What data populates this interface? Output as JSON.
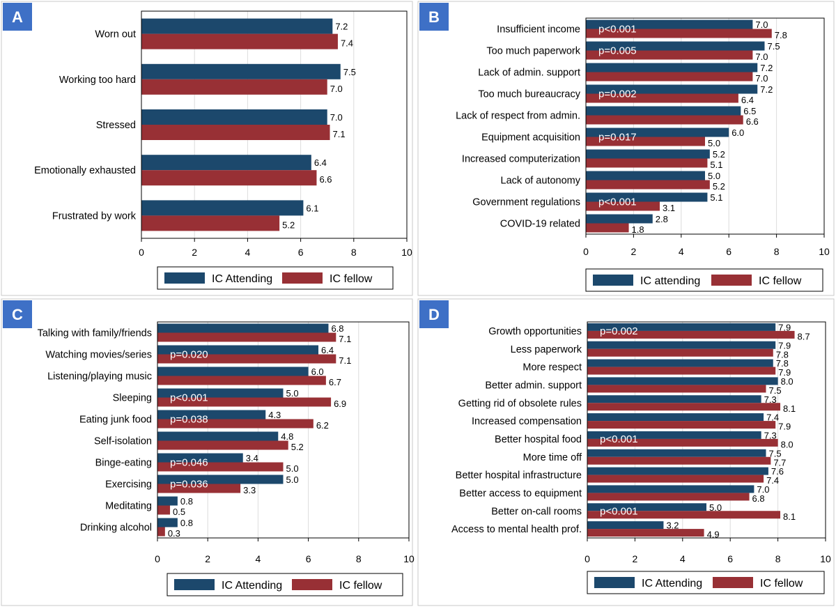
{
  "colors": {
    "attending": "#1c486c",
    "fellow": "#983035",
    "badge": "#3e70c6",
    "frame": "#c9c9c9"
  },
  "chart_data": [
    {
      "type": "bar",
      "panel_label": "A",
      "orientation": "horizontal",
      "categories": [
        "Worn out",
        "Working too hard",
        "Stressed",
        "Emotionally exhausted",
        "Frustrated by work"
      ],
      "series": [
        {
          "name": "IC Attending",
          "values": [
            7.2,
            7.5,
            7.0,
            6.4,
            6.1
          ]
        },
        {
          "name": "IC fellow",
          "values": [
            7.4,
            7.0,
            7.1,
            6.6,
            5.2
          ]
        }
      ],
      "value_labels": {
        "attending": [
          "7.2",
          "7.5",
          "7.0",
          "6.4",
          "6.1"
        ],
        "fellow": [
          "7.4",
          "7.0",
          "7.1",
          "6.6",
          "5.2"
        ]
      },
      "p_values": [
        "",
        "",
        "",
        "",
        ""
      ],
      "xlim": [
        0,
        10
      ],
      "xticks": [
        "0",
        "2",
        "4",
        "6",
        "8",
        "10"
      ],
      "grid": true,
      "legend_position": "bottom"
    },
    {
      "type": "bar",
      "panel_label": "B",
      "orientation": "horizontal",
      "categories": [
        "Insufficient income",
        "Too much paperwork",
        "Lack of admin. support",
        "Too much bureaucracy",
        "Lack of respect from admin.",
        "Equipment acquisition",
        "Increased computerization",
        "Lack of autonomy",
        "Government regulations",
        "COVID-19 related"
      ],
      "series": [
        {
          "name": "IC attending",
          "values": [
            7.0,
            7.5,
            7.2,
            7.2,
            6.5,
            6.0,
            5.2,
            5.0,
            5.1,
            2.8
          ]
        },
        {
          "name": "IC fellow",
          "values": [
            7.8,
            7.0,
            7.0,
            6.4,
            6.6,
            5.0,
            5.1,
            5.2,
            3.1,
            1.8
          ]
        }
      ],
      "value_labels": {
        "attending": [
          "7.0",
          "7.5",
          "7.2",
          "7.2",
          "6.5",
          "6.0",
          "5.2",
          "5.0",
          "5.1",
          "2.8"
        ],
        "fellow": [
          "7.8",
          "7.0",
          "7.0",
          "6.4",
          "6.6",
          "5.0",
          "5.1",
          "5.2",
          "3.1",
          "1.8"
        ]
      },
      "p_values": [
        "p<0.001",
        "p=0.005",
        "",
        "p=0.002",
        "",
        "p=0.017",
        "",
        "",
        "p<0.001",
        ""
      ],
      "xlim": [
        0,
        10
      ],
      "xticks": [
        "0",
        "2",
        "4",
        "6",
        "8",
        "10"
      ],
      "grid": true,
      "legend_position": "bottom"
    },
    {
      "type": "bar",
      "panel_label": "C",
      "orientation": "horizontal",
      "categories": [
        "Talking with family/friends",
        "Watching movies/series",
        "Listening/playing music",
        "Sleeping",
        "Eating junk food",
        "Self-isolation",
        "Binge-eating",
        "Exercising",
        "Meditating",
        "Drinking alcohol"
      ],
      "series": [
        {
          "name": "IC Attending",
          "values": [
            6.8,
            6.4,
            6.0,
            5.0,
            4.3,
            4.8,
            3.4,
            5.0,
            0.8,
            0.8
          ]
        },
        {
          "name": "IC fellow",
          "values": [
            7.1,
            7.1,
            6.7,
            6.9,
            6.2,
            5.2,
            5.0,
            3.3,
            0.5,
            0.3
          ]
        }
      ],
      "value_labels": {
        "attending": [
          "6.8",
          "6.4",
          "6.0",
          "5.0",
          "4.3",
          "4.8",
          "3.4",
          "5.0",
          "0.8",
          "0.8"
        ],
        "fellow": [
          "7.1",
          "7.1",
          "6.7",
          "6.9",
          "6.2",
          "5.2",
          "5.0",
          "3.3",
          "0.5",
          "0.3"
        ]
      },
      "p_values": [
        "",
        "p=0.020",
        "",
        "p<0.001",
        "p=0.038",
        "",
        "p=0.046",
        "p=0.036",
        "",
        ""
      ],
      "xlim": [
        0,
        10
      ],
      "xticks": [
        "0",
        "2",
        "4",
        "6",
        "8",
        "10"
      ],
      "grid": true,
      "legend_position": "bottom"
    },
    {
      "type": "bar",
      "panel_label": "D",
      "orientation": "horizontal",
      "categories": [
        "Growth opportunities",
        "Less paperwork",
        "More respect",
        "Better admin. support",
        "Getting rid of obsolete rules",
        "Increased compensation",
        "Better hospital food",
        "More time off",
        "Better hospital infrastructure",
        "Better access to equipment",
        "Better on-call rooms",
        "Access to mental health prof."
      ],
      "series": [
        {
          "name": "IC Attending",
          "values": [
            7.9,
            7.9,
            7.8,
            8.0,
            7.3,
            7.4,
            7.3,
            7.5,
            7.6,
            7.0,
            5.0,
            3.2
          ]
        },
        {
          "name": "IC fellow",
          "values": [
            8.7,
            7.8,
            7.9,
            7.5,
            8.1,
            7.9,
            8.0,
            7.7,
            7.4,
            6.8,
            8.1,
            4.9
          ]
        }
      ],
      "value_labels": {
        "attending": [
          "7.9",
          "7.9",
          "7.8",
          "8.0",
          "7.3",
          "7.4",
          "7.3",
          "7.5",
          "7.6",
          "7.0",
          "5.0",
          "3.2"
        ],
        "fellow": [
          "8.7",
          "7.8",
          "7.9",
          "7.5",
          "8.1",
          "7.9",
          "8.0",
          "7.7",
          "7.4",
          "6.8",
          "8.1",
          "4.9"
        ]
      },
      "p_values": [
        "p=0.002",
        "",
        "",
        "",
        "",
        "",
        "p<0.001",
        "",
        "",
        "",
        "p<0.001",
        ""
      ],
      "xlim": [
        0,
        10
      ],
      "xticks": [
        "0",
        "2",
        "4",
        "6",
        "8",
        "10"
      ],
      "grid": true,
      "legend_position": "bottom"
    }
  ]
}
